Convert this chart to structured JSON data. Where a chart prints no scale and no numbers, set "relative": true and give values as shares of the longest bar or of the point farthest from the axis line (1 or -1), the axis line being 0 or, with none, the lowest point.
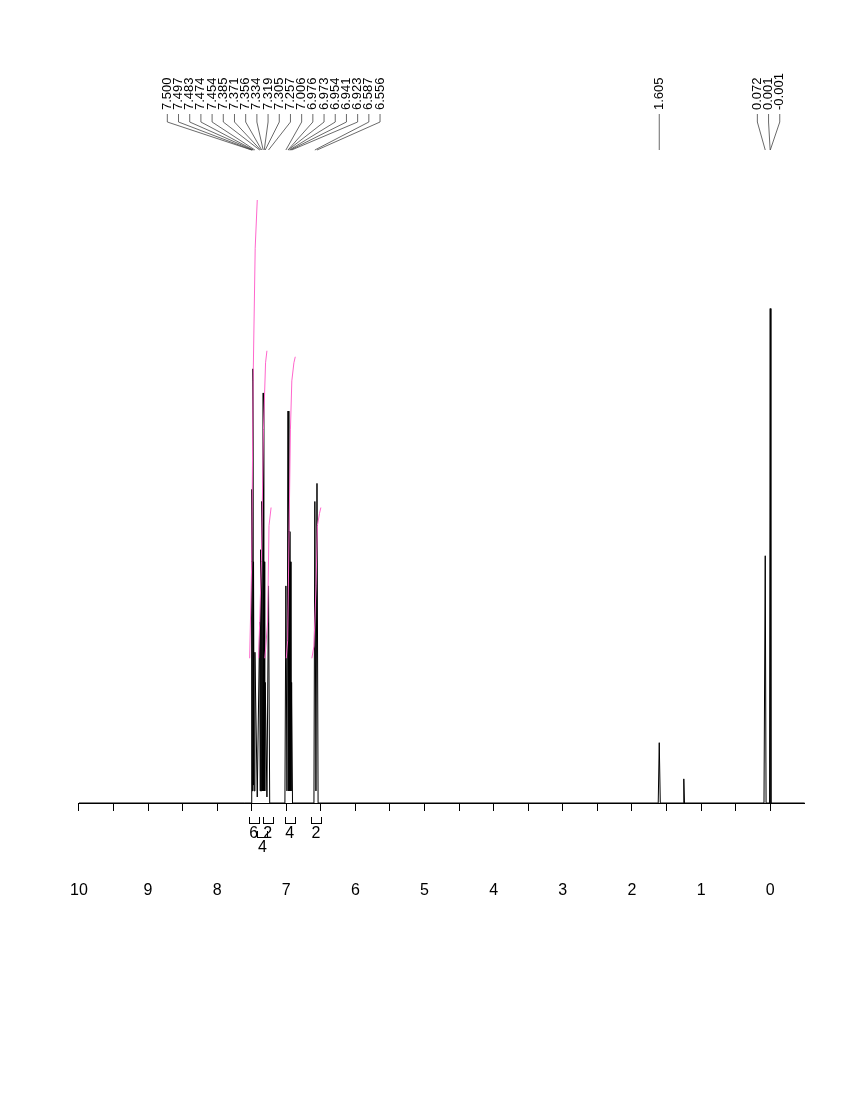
{
  "chart_data": {
    "type": "line",
    "relative": true,
    "xlim": [
      10,
      -0.5
    ],
    "xticks": [
      {
        "value": 10,
        "label": "10"
      },
      {
        "value": 9.5,
        "label": null
      },
      9,
      {
        "value": 8.5,
        "label": null
      },
      8,
      {
        "value": 7.5,
        "label": null
      },
      7,
      {
        "value": 6.5,
        "label": null
      },
      6,
      {
        "value": 5.5,
        "label": null
      },
      5,
      {
        "value": 4.5,
        "label": null
      },
      4,
      {
        "value": 3.5,
        "label": null
      },
      3,
      {
        "value": 2.5,
        "label": null
      },
      2,
      {
        "value": 1.5,
        "label": null
      },
      1,
      {
        "value": 0.5,
        "label": null
      },
      0
    ],
    "series": [
      {
        "color": "#000000",
        "x": [
          10,
          7.6,
          7.51,
          7.5,
          7.49,
          7.483,
          7.478,
          7.474,
          7.464,
          7.454,
          7.42,
          7.385,
          7.378,
          7.371,
          7.363,
          7.356,
          7.345,
          7.334,
          7.326,
          7.319,
          7.312,
          7.305,
          7.28,
          7.257,
          7.24,
          7.02,
          7.006,
          6.99,
          6.975,
          6.963,
          6.954,
          6.947,
          6.941,
          6.932,
          6.923,
          6.91,
          6.6,
          6.587,
          6.571,
          6.556,
          6.54,
          1.62,
          1.605,
          1.59,
          1.26,
          1.25,
          1.24,
          0.09,
          0.072,
          0.06,
          0.01,
          0,
          -0.01,
          -0.5
        ],
        "values": [
          0,
          0,
          0,
          0.52,
          0.02,
          0.72,
          0.03,
          0.4,
          0.02,
          0.25,
          0.01,
          0.3,
          0.02,
          0.42,
          0.02,
          0.5,
          0.02,
          0.68,
          0.02,
          0.4,
          0.02,
          0.2,
          0.01,
          0.36,
          0,
          0,
          0.36,
          0.02,
          0.65,
          0.02,
          0.45,
          0.02,
          0.4,
          0.02,
          0.2,
          0,
          0,
          0.5,
          0.02,
          0.53,
          0,
          0,
          0.1,
          0,
          0,
          0.04,
          0,
          0,
          0.41,
          0,
          0,
          0.82,
          0,
          0
        ]
      },
      {
        "color": "#ff66cc",
        "x": [
          6.63,
          6.6,
          6.57,
          6.55,
          6.52,
          6.5
        ],
        "values": [
          0.24,
          0.26,
          0.36,
          0.46,
          0.48,
          0.49
        ]
      },
      {
        "color": "#ff66cc",
        "x": [
          7,
          6.98,
          6.96,
          6.94,
          6.92,
          6.89,
          6.87
        ],
        "values": [
          0.24,
          0.27,
          0.45,
          0.62,
          0.7,
          0.73,
          0.74
        ]
      },
      {
        "color": "#ff66cc",
        "x": [
          7.4,
          7.36,
          7.33,
          7.3,
          7.28
        ],
        "values": [
          0.24,
          0.4,
          0.62,
          0.73,
          0.75
        ]
      },
      {
        "color": "#ff66cc",
        "x": [
          7.31,
          7.27,
          7.25,
          7.22
        ],
        "values": [
          0.24,
          0.3,
          0.46,
          0.49
        ]
      },
      {
        "color": "#ff66cc",
        "x": [
          7.53,
          7.5,
          7.48,
          7.45,
          7.42
        ],
        "values": [
          0.24,
          0.4,
          0.7,
          0.92,
          1
        ]
      }
    ],
    "annotations": [
      {
        "text": "-0.001",
        "x": -0.001
      },
      {
        "text": "0.001",
        "x": 0.001
      },
      {
        "text": "0.072",
        "x": 0.072
      },
      {
        "text": "1.605",
        "x": 1.605
      },
      {
        "text": "6.556",
        "x": 6.556
      },
      {
        "text": "6.587",
        "x": 6.587
      },
      {
        "text": "6.923",
        "x": 6.923
      },
      {
        "text": "6.941",
        "x": 6.941
      },
      {
        "text": "6.954",
        "x": 6.954
      },
      {
        "text": "6.973",
        "x": 6.973
      },
      {
        "text": "6.976",
        "x": 6.976
      },
      {
        "text": "7.006",
        "x": 7.006
      },
      {
        "text": "7.257",
        "x": 7.257
      },
      {
        "text": "7.305",
        "x": 7.305
      },
      {
        "text": "7.319",
        "x": 7.319
      },
      {
        "text": "7.334",
        "x": 7.334
      },
      {
        "text": "7.356",
        "x": 7.356
      },
      {
        "text": "7.371",
        "x": 7.371
      },
      {
        "text": "7.385",
        "x": 7.385
      },
      {
        "text": "7.454",
        "x": 7.454
      },
      {
        "text": "7.474",
        "x": 7.474
      },
      {
        "text": "7.483",
        "x": 7.483
      },
      {
        "text": "7.497",
        "x": 7.497
      },
      {
        "text": "7.500",
        "x": 7.5
      },
      {
        "text": "2",
        "x": 6.57,
        "y": 0
      },
      {
        "text": "4",
        "x": 6.95,
        "y": 0
      },
      {
        "text": "2",
        "x": 7.27,
        "y": 0
      },
      {
        "text": "4",
        "x": 7.345,
        "y": 0.02
      },
      {
        "text": "6",
        "x": 7.47,
        "y": 0
      }
    ]
  }
}
